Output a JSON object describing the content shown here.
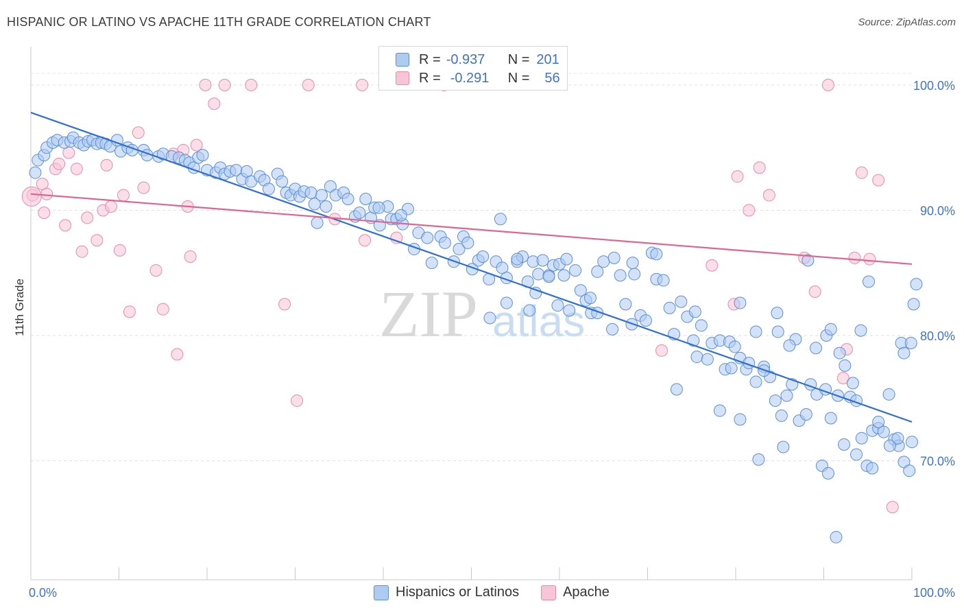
{
  "header": {
    "title": "HISPANIC OR LATINO VS APACHE 11TH GRADE CORRELATION CHART",
    "source": "Source: ZipAtlas.com"
  },
  "watermark": {
    "zip": "ZIP",
    "atlas": "atlas"
  },
  "legend": {
    "rows": [
      {
        "r_label": "R =",
        "r_value": "-0.937",
        "n_label": "N =",
        "n_value": "201"
      },
      {
        "r_label": "R =",
        "r_value": "-0.291",
        "n_label": "N =",
        "n_value": "56"
      }
    ]
  },
  "bottom_legend": {
    "series1": "Hispanics or Latinos",
    "series2": "Apache"
  },
  "colors": {
    "blue_fill": "#aecbf2",
    "blue_stroke": "#5b8fd6",
    "blue_line": "#2e6fd0",
    "pink_fill": "#f7c5d5",
    "pink_stroke": "#e98aaa",
    "pink_line": "#e0648e",
    "axis_text": "#3f73c9",
    "grid": "#dddddd"
  },
  "chart_data": {
    "type": "scatter",
    "xlabel": "",
    "ylabel": "11th Grade",
    "x_tick_labels": [
      "0.0%",
      "100.0%"
    ],
    "y_tick_labels": [
      "100.0%",
      "90.0%",
      "80.0%",
      "70.0%"
    ],
    "y_ticks": [
      100,
      90,
      80,
      70
    ],
    "xlim": [
      0,
      100
    ],
    "ylim": [
      60.5,
      103.5
    ],
    "grid": true,
    "series": [
      {
        "name": "Hispanics or Latinos",
        "trend": {
          "x": [
            0,
            100
          ],
          "y": [
            97.8,
            73.1
          ]
        },
        "points": [
          [
            0.5,
            93
          ],
          [
            0.8,
            94
          ],
          [
            1.5,
            94.4
          ],
          [
            1.8,
            95
          ],
          [
            2.5,
            95.4
          ],
          [
            3,
            95.6
          ],
          [
            3.8,
            95.4
          ],
          [
            4.5,
            95.5
          ],
          [
            4.8,
            95.8
          ],
          [
            5.5,
            95.4
          ],
          [
            6,
            95.2
          ],
          [
            6.5,
            95.5
          ],
          [
            7,
            95.6
          ],
          [
            7.5,
            95.3
          ],
          [
            8,
            95.4
          ],
          [
            8.5,
            95.3
          ],
          [
            9,
            95.1
          ],
          [
            9.8,
            95.6
          ],
          [
            10.2,
            94.7
          ],
          [
            11,
            95
          ],
          [
            11.5,
            94.8
          ],
          [
            12.8,
            94.8
          ],
          [
            13.2,
            94.4
          ],
          [
            14.5,
            94.3
          ],
          [
            15,
            94.5
          ],
          [
            16,
            94.3
          ],
          [
            16.8,
            94.2
          ],
          [
            17.5,
            94
          ],
          [
            18,
            93.8
          ],
          [
            18.5,
            93.4
          ],
          [
            19,
            94.2
          ],
          [
            19.5,
            94.4
          ],
          [
            20,
            93.2
          ],
          [
            21,
            93
          ],
          [
            21.5,
            93.4
          ],
          [
            22,
            92.9
          ],
          [
            22.6,
            93.1
          ],
          [
            23.3,
            93.2
          ],
          [
            24,
            92.5
          ],
          [
            24.5,
            93.1
          ],
          [
            25,
            92.3
          ],
          [
            26,
            92.7
          ],
          [
            26.5,
            92.4
          ],
          [
            27,
            91.7
          ],
          [
            28,
            92.9
          ],
          [
            28.5,
            92.3
          ],
          [
            29,
            91.4
          ],
          [
            29.5,
            91.2
          ],
          [
            30,
            91.7
          ],
          [
            30.5,
            91.1
          ],
          [
            31,
            91.5
          ],
          [
            31.8,
            91.4
          ],
          [
            32.2,
            90.5
          ],
          [
            33,
            91.2
          ],
          [
            33.5,
            90.3
          ],
          [
            34,
            91.9
          ],
          [
            34.6,
            91.2
          ],
          [
            35.5,
            91.4
          ],
          [
            36,
            90.9
          ],
          [
            36.8,
            89.5
          ],
          [
            37.3,
            89.8
          ],
          [
            38,
            90.9
          ],
          [
            38.6,
            89.4
          ],
          [
            39,
            90.2
          ],
          [
            39.6,
            88.8
          ],
          [
            40.5,
            90.3
          ],
          [
            40.9,
            89.3
          ],
          [
            41.5,
            89.3
          ],
          [
            42.2,
            88.9
          ],
          [
            42.8,
            90.1
          ],
          [
            32.5,
            89
          ],
          [
            39.5,
            90.2
          ],
          [
            42,
            89.6
          ],
          [
            43.5,
            86.9
          ],
          [
            44,
            88.2
          ],
          [
            45,
            87.8
          ],
          [
            45.5,
            85.8
          ],
          [
            46.5,
            87.9
          ],
          [
            47,
            87.4
          ],
          [
            48,
            85.9
          ],
          [
            48.6,
            86.9
          ],
          [
            49.1,
            87.9
          ],
          [
            49.6,
            87.4
          ],
          [
            50.1,
            85.3
          ],
          [
            50.8,
            86
          ],
          [
            51.3,
            86.3
          ],
          [
            52,
            84.5
          ],
          [
            52.8,
            85.9
          ],
          [
            53.5,
            85.4
          ],
          [
            54,
            84.6
          ],
          [
            55.2,
            85.9
          ],
          [
            55.8,
            86.3
          ],
          [
            56.4,
            84.3
          ],
          [
            57,
            85.9
          ],
          [
            57.6,
            84.9
          ],
          [
            58.1,
            86
          ],
          [
            58.8,
            84.8
          ],
          [
            59.3,
            85.6
          ],
          [
            60,
            85.7
          ],
          [
            60.5,
            84.8
          ],
          [
            60.8,
            86.1
          ],
          [
            61.8,
            85.2
          ],
          [
            53.3,
            89.3
          ],
          [
            62.4,
            83.6
          ],
          [
            63,
            82.8
          ],
          [
            63.6,
            81.8
          ],
          [
            64.3,
            81.8
          ],
          [
            65,
            85.9
          ],
          [
            66.2,
            86.2
          ],
          [
            66.9,
            84.8
          ],
          [
            67.5,
            82.5
          ],
          [
            68.2,
            80.9
          ],
          [
            68.5,
            84.9
          ],
          [
            69.2,
            81.6
          ],
          [
            69.8,
            81.2
          ],
          [
            70.5,
            86.6
          ],
          [
            71,
            84.5
          ],
          [
            71.8,
            84.4
          ],
          [
            72.5,
            82.2
          ],
          [
            73,
            80.1
          ],
          [
            73.8,
            82.7
          ],
          [
            74.5,
            81.5
          ],
          [
            75.2,
            79.6
          ],
          [
            75.6,
            78.3
          ],
          [
            76.1,
            80.8
          ],
          [
            77.3,
            79.4
          ],
          [
            78.2,
            79.6
          ],
          [
            78.8,
            77.3
          ],
          [
            79.3,
            79.5
          ],
          [
            79.9,
            79.1
          ],
          [
            80.5,
            78.2
          ],
          [
            81.2,
            77.3
          ],
          [
            81.5,
            77.8
          ],
          [
            82.3,
            76.3
          ],
          [
            83.2,
            77.5
          ],
          [
            83.9,
            76.7
          ],
          [
            84.5,
            74.8
          ],
          [
            85.2,
            73.6
          ],
          [
            85.8,
            75.2
          ],
          [
            86.4,
            76.1
          ],
          [
            87.2,
            73.2
          ],
          [
            88,
            73.7
          ],
          [
            88.5,
            76.1
          ],
          [
            89.2,
            75.3
          ],
          [
            90.2,
            75.7
          ],
          [
            90.8,
            73.4
          ],
          [
            91.6,
            75.2
          ],
          [
            92.3,
            71.3
          ],
          [
            93,
            75.1
          ],
          [
            93.7,
            74.8
          ],
          [
            94.3,
            71.8
          ],
          [
            94.9,
            69.6
          ],
          [
            95.5,
            72.4
          ],
          [
            96.2,
            72.6
          ],
          [
            96.8,
            72.3
          ],
          [
            97.4,
            75.3
          ],
          [
            98,
            71.7
          ],
          [
            98.5,
            71.2
          ],
          [
            99.1,
            69.9
          ],
          [
            99.7,
            69.2
          ],
          [
            100,
            71.5
          ],
          [
            66,
            80.5
          ],
          [
            73.3,
            75.7
          ],
          [
            76.8,
            78.1
          ],
          [
            79.5,
            77.4
          ],
          [
            82.3,
            80.3
          ],
          [
            84.8,
            80.3
          ],
          [
            86.8,
            79.7
          ],
          [
            89.1,
            79
          ],
          [
            90.3,
            80
          ],
          [
            90.8,
            80.5
          ],
          [
            91.8,
            78.6
          ],
          [
            92.4,
            77.6
          ],
          [
            93.3,
            76.2
          ],
          [
            94.2,
            80.4
          ],
          [
            95.1,
            84.3
          ],
          [
            96.2,
            73.1
          ],
          [
            97.5,
            71.2
          ],
          [
            98.4,
            71.8
          ],
          [
            98.8,
            79.4
          ],
          [
            99.1,
            78.6
          ],
          [
            99.9,
            79.4
          ],
          [
            100.2,
            82.5
          ],
          [
            100.5,
            84.1
          ],
          [
            88.2,
            86
          ],
          [
            84.7,
            81.8
          ],
          [
            80.5,
            82.6
          ],
          [
            75.4,
            81.9
          ],
          [
            71,
            86.5
          ],
          [
            68.3,
            85.8
          ],
          [
            64.3,
            85.1
          ],
          [
            63.5,
            83
          ],
          [
            61.1,
            82
          ],
          [
            59.8,
            82.4
          ],
          [
            58.8,
            84.7
          ],
          [
            57.3,
            83.4
          ],
          [
            56.6,
            82
          ],
          [
            55.2,
            86.1
          ],
          [
            54,
            82.6
          ],
          [
            52.1,
            81.4
          ],
          [
            78.2,
            74
          ],
          [
            80.5,
            73.3
          ],
          [
            82.6,
            70.1
          ],
          [
            83.2,
            77.2
          ],
          [
            85.4,
            71.1
          ],
          [
            86.1,
            79.2
          ],
          [
            89.8,
            69.6
          ],
          [
            90.5,
            69
          ],
          [
            91.4,
            63.9
          ],
          [
            93.7,
            70.5
          ],
          [
            95.5,
            69.4
          ]
        ]
      },
      {
        "name": "Apache",
        "trend": {
          "x": [
            0,
            100
          ],
          "y": [
            91.3,
            85.7
          ]
        },
        "points": [
          [
            0.2,
            91.2
          ],
          [
            1.3,
            92.1
          ],
          [
            1.8,
            91.3
          ],
          [
            1.5,
            89.8
          ],
          [
            2.8,
            93.3
          ],
          [
            3.2,
            93.7
          ],
          [
            3.9,
            88.8
          ],
          [
            4.3,
            94.6
          ],
          [
            5.2,
            93.3
          ],
          [
            5.8,
            86.7
          ],
          [
            6.4,
            89.4
          ],
          [
            7.5,
            87.6
          ],
          [
            8.2,
            90
          ],
          [
            8.6,
            93.6
          ],
          [
            9.1,
            90.3
          ],
          [
            10.1,
            86.8
          ],
          [
            10.5,
            91.2
          ],
          [
            11.2,
            81.9
          ],
          [
            12.2,
            96.2
          ],
          [
            12.8,
            91.8
          ],
          [
            14.2,
            85.2
          ],
          [
            15,
            82.1
          ],
          [
            16.2,
            94.5
          ],
          [
            16.6,
            78.5
          ],
          [
            17.3,
            94.8
          ],
          [
            17.8,
            90.3
          ],
          [
            18.1,
            86.3
          ],
          [
            18.8,
            95.2
          ],
          [
            19.8,
            100
          ],
          [
            20.8,
            98.5
          ],
          [
            22,
            100
          ],
          [
            25,
            100
          ],
          [
            28.8,
            82.5
          ],
          [
            30.2,
            74.8
          ],
          [
            31.5,
            100
          ],
          [
            34.5,
            89.3
          ],
          [
            37.6,
            100
          ],
          [
            37.9,
            87.6
          ],
          [
            41.5,
            87.8
          ],
          [
            46.9,
            100
          ],
          [
            71.6,
            78.8
          ],
          [
            77.3,
            85.6
          ],
          [
            79.8,
            82.5
          ],
          [
            80.2,
            92.7
          ],
          [
            81.5,
            90
          ],
          [
            82.7,
            93.4
          ],
          [
            83.8,
            91.2
          ],
          [
            87.8,
            86.2
          ],
          [
            89,
            83.5
          ],
          [
            90.5,
            100
          ],
          [
            92.2,
            76.6
          ],
          [
            92.6,
            78.9
          ],
          [
            93.5,
            86.2
          ],
          [
            94.3,
            93
          ],
          [
            95.2,
            86.1
          ],
          [
            96.2,
            92.4
          ],
          [
            97.8,
            66.3
          ]
        ]
      }
    ]
  }
}
